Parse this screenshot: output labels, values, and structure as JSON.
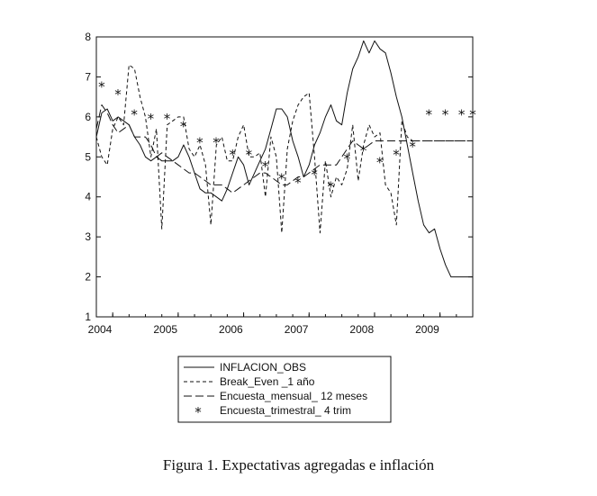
{
  "chart_data": {
    "type": "line",
    "title": "",
    "xlabel": "",
    "ylabel": "",
    "xlim": [
      2003.75,
      2009.5
    ],
    "ylim": [
      1,
      8
    ],
    "yticks": [
      "1",
      "2",
      "3",
      "4",
      "5",
      "6",
      "7",
      "8"
    ],
    "xticks": [
      "2004",
      "2005",
      "2006",
      "2007",
      "2008",
      "2009"
    ],
    "x": [
      2003.75,
      2003.833,
      2003.917,
      2004.0,
      2004.083,
      2004.167,
      2004.25,
      2004.333,
      2004.417,
      2004.5,
      2004.583,
      2004.667,
      2004.75,
      2004.833,
      2004.917,
      2005.0,
      2005.083,
      2005.167,
      2005.25,
      2005.333,
      2005.417,
      2005.5,
      2005.583,
      2005.667,
      2005.75,
      2005.833,
      2005.917,
      2006.0,
      2006.083,
      2006.167,
      2006.25,
      2006.333,
      2006.417,
      2006.5,
      2006.583,
      2006.667,
      2006.75,
      2006.833,
      2006.917,
      2007.0,
      2007.083,
      2007.167,
      2007.25,
      2007.333,
      2007.417,
      2007.5,
      2007.583,
      2007.667,
      2007.75,
      2007.833,
      2007.917,
      2008.0,
      2008.083,
      2008.167,
      2008.25,
      2008.333,
      2008.417,
      2008.5,
      2008.583,
      2008.667,
      2008.75,
      2008.833,
      2008.917,
      2009.0,
      2009.083,
      2009.167,
      2009.25,
      2009.333,
      2009.417,
      2009.5
    ],
    "series": [
      {
        "name": "INFLACION_OBS",
        "style": "solid",
        "values": [
          5.5,
          6.1,
          6.2,
          5.9,
          6.0,
          5.9,
          5.8,
          5.5,
          5.3,
          5.0,
          4.9,
          5.0,
          4.9,
          4.9,
          4.9,
          5.0,
          5.3,
          5.0,
          4.6,
          4.2,
          4.1,
          4.1,
          4.0,
          3.9,
          4.2,
          4.6,
          5.0,
          4.8,
          4.3,
          4.6,
          4.9,
          5.2,
          5.7,
          6.2,
          6.2,
          6.0,
          5.4,
          5.0,
          4.5,
          4.8,
          5.3,
          5.6,
          6.0,
          6.3,
          5.9,
          5.8,
          6.6,
          7.2,
          7.5,
          7.9,
          7.6,
          7.9,
          7.7,
          7.6,
          7.1,
          6.5,
          6.0,
          5.3,
          4.6,
          3.9,
          3.3,
          3.1,
          3.2,
          2.7,
          2.3,
          2.0,
          2.0,
          2.0,
          2.0,
          2.0
        ]
      },
      {
        "name": "Break_Even _1 año",
        "style": "dashed",
        "values": [
          5.5,
          5.0,
          4.8,
          5.7,
          6.0,
          5.8,
          7.3,
          7.2,
          6.5,
          6.0,
          5.0,
          5.7,
          3.2,
          5.8,
          5.9,
          6.0,
          6.0,
          5.2,
          5.0,
          5.3,
          4.8,
          3.3,
          5.3,
          5.5,
          4.9,
          4.9,
          5.5,
          5.8,
          5.0,
          5.0,
          5.1,
          4.0,
          5.5,
          5.0,
          3.1,
          5.2,
          5.9,
          6.3,
          6.5,
          6.6,
          5.0,
          3.1,
          4.9,
          4.0,
          4.5,
          4.3,
          4.7,
          5.8,
          4.4,
          5.3,
          5.8,
          5.5,
          5.6,
          4.3,
          4.1,
          3.3,
          5.9,
          5.5,
          5.4,
          5.4,
          5.4,
          5.4,
          5.4,
          5.4,
          5.4,
          5.4,
          5.4,
          5.4,
          5.4,
          5.4
        ]
      },
      {
        "name": "Encuesta_mensual_ 12 meses",
        "style": "longdash",
        "values": [
          5.7,
          6.3,
          6.1,
          5.8,
          5.6,
          5.7,
          5.8,
          5.5,
          5.5,
          5.5,
          5.3,
          5.0,
          5.1,
          5.0,
          4.9,
          4.8,
          4.7,
          4.6,
          4.6,
          4.5,
          4.4,
          4.3,
          4.3,
          4.3,
          4.2,
          4.1,
          4.2,
          4.3,
          4.4,
          4.5,
          4.6,
          4.6,
          4.5,
          4.4,
          4.3,
          4.3,
          4.4,
          4.5,
          4.5,
          4.6,
          4.7,
          4.8,
          4.8,
          4.8,
          4.8,
          5.0,
          5.2,
          5.4,
          5.3,
          5.2,
          5.3,
          5.4,
          5.4,
          5.4,
          5.4,
          5.4,
          5.4,
          5.4,
          5.4,
          5.4,
          5.4,
          5.4,
          5.4,
          5.4,
          5.4,
          5.4,
          5.4,
          5.4,
          5.4,
          5.4
        ]
      },
      {
        "name": "Encuesta_trimestral_ 4 trim",
        "style": "marker",
        "x": [
          2003.83,
          2004.08,
          2004.33,
          2004.58,
          2004.83,
          2005.08,
          2005.33,
          2005.58,
          2005.83,
          2006.08,
          2006.33,
          2006.58,
          2006.83,
          2007.08,
          2007.33,
          2007.58,
          2007.83,
          2008.08,
          2008.33,
          2008.58,
          2008.83,
          2009.08,
          2009.33,
          2009.5
        ],
        "values": [
          6.8,
          6.6,
          6.1,
          6.0,
          6.0,
          5.8,
          5.4,
          5.4,
          5.1,
          5.1,
          4.8,
          4.5,
          4.4,
          4.6,
          4.3,
          5.0,
          5.2,
          4.9,
          5.1,
          5.3,
          6.1,
          6.1,
          6.1,
          6.1
        ]
      }
    ],
    "legend": [
      "INFLACION_OBS",
      "Break_Even _1 año",
      "Encuesta_mensual_ 12 meses",
      "Encuesta_trimestral_ 4 trim"
    ],
    "legend_position": "bottom"
  },
  "caption": "Figura 1. Expectativas agregadas e inflación"
}
